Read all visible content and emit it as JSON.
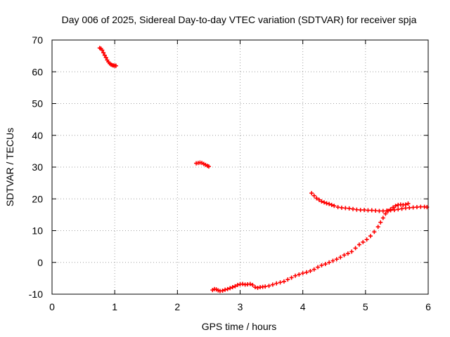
{
  "chart_data": {
    "type": "scatter",
    "title": "Day 006 of 2025, Sidereal Day-to-day VTEC variation (SDTVAR) for receiver spja",
    "xlabel": "GPS time / hours",
    "ylabel": "SDTVAR / TECUs",
    "xlim": [
      0,
      6
    ],
    "ylim": [
      -10,
      70
    ],
    "grid": true,
    "x_ticks": [
      "0",
      "1",
      "2",
      "3",
      "4",
      "5",
      "6"
    ],
    "y_ticks": [
      "-10",
      "0",
      "10",
      "20",
      "30",
      "40",
      "50",
      "60",
      "70"
    ],
    "marker": "+",
    "colors": {
      "series": "#ff0000",
      "grid": "#a0a0a0",
      "axes": "#000000"
    },
    "series": [
      {
        "points": [
          [
            0.76,
            67.5
          ],
          [
            0.78,
            67.3
          ],
          [
            0.8,
            66.8
          ],
          [
            0.82,
            66.0
          ],
          [
            0.84,
            65.2
          ],
          [
            0.86,
            64.5
          ],
          [
            0.88,
            63.7
          ],
          [
            0.9,
            63.1
          ],
          [
            0.92,
            62.6
          ],
          [
            0.94,
            62.3
          ],
          [
            0.96,
            62.1
          ],
          [
            0.98,
            62.0
          ],
          [
            1.0,
            61.9
          ],
          [
            1.02,
            61.9
          ],
          [
            2.3,
            31.2
          ],
          [
            2.33,
            31.3
          ],
          [
            2.36,
            31.4
          ],
          [
            2.39,
            31.3
          ],
          [
            2.42,
            31.0
          ],
          [
            2.45,
            30.7
          ],
          [
            2.48,
            30.4
          ],
          [
            2.5,
            30.2
          ],
          [
            2.56,
            -8.7
          ],
          [
            2.59,
            -8.4
          ],
          [
            2.62,
            -8.5
          ],
          [
            2.65,
            -8.8
          ],
          [
            2.68,
            -9.0
          ],
          [
            2.72,
            -8.9
          ],
          [
            2.76,
            -8.6
          ],
          [
            2.8,
            -8.4
          ],
          [
            2.84,
            -8.1
          ],
          [
            2.88,
            -7.8
          ],
          [
            2.92,
            -7.5
          ],
          [
            2.96,
            -7.1
          ],
          [
            3.0,
            -6.9
          ],
          [
            3.04,
            -6.8
          ],
          [
            3.08,
            -7.0
          ],
          [
            3.12,
            -6.9
          ],
          [
            3.16,
            -6.8
          ],
          [
            3.2,
            -7.1
          ],
          [
            3.24,
            -7.8
          ],
          [
            3.28,
            -8.0
          ],
          [
            3.32,
            -7.8
          ],
          [
            3.36,
            -7.7
          ],
          [
            3.4,
            -7.6
          ],
          [
            3.46,
            -7.4
          ],
          [
            3.52,
            -7.0
          ],
          [
            3.58,
            -6.6
          ],
          [
            3.64,
            -6.3
          ],
          [
            3.7,
            -6.0
          ],
          [
            3.76,
            -5.4
          ],
          [
            3.82,
            -4.8
          ],
          [
            3.88,
            -4.2
          ],
          [
            3.94,
            -3.8
          ],
          [
            4.0,
            -3.4
          ],
          [
            4.06,
            -3.1
          ],
          [
            4.12,
            -2.7
          ],
          [
            4.18,
            -2.2
          ],
          [
            4.24,
            -1.5
          ],
          [
            4.3,
            -0.9
          ],
          [
            4.36,
            -0.5
          ],
          [
            4.42,
            0.0
          ],
          [
            4.48,
            0.5
          ],
          [
            4.54,
            1.0
          ],
          [
            4.6,
            1.6
          ],
          [
            4.66,
            2.3
          ],
          [
            4.72,
            2.8
          ],
          [
            4.78,
            3.4
          ],
          [
            4.84,
            4.5
          ],
          [
            4.9,
            5.6
          ],
          [
            4.96,
            6.4
          ],
          [
            5.02,
            7.2
          ],
          [
            5.08,
            8.3
          ],
          [
            5.14,
            9.6
          ],
          [
            5.2,
            11.2
          ],
          [
            5.24,
            12.6
          ],
          [
            5.28,
            14.0
          ],
          [
            5.32,
            15.3
          ],
          [
            5.36,
            16.2
          ],
          [
            5.4,
            16.7
          ],
          [
            5.44,
            17.3
          ],
          [
            5.48,
            17.8
          ],
          [
            5.52,
            18.1
          ],
          [
            5.56,
            18.2
          ],
          [
            5.6,
            18.1
          ],
          [
            5.64,
            18.2
          ],
          [
            5.68,
            18.5
          ],
          [
            4.14,
            21.8
          ],
          [
            4.18,
            21.0
          ],
          [
            4.22,
            20.2
          ],
          [
            4.26,
            19.7
          ],
          [
            4.3,
            19.2
          ],
          [
            4.34,
            18.9
          ],
          [
            4.38,
            18.6
          ],
          [
            4.42,
            18.4
          ],
          [
            4.46,
            18.1
          ],
          [
            4.5,
            17.8
          ],
          [
            4.56,
            17.4
          ],
          [
            4.62,
            17.2
          ],
          [
            4.68,
            17.1
          ],
          [
            4.74,
            17.0
          ],
          [
            4.8,
            16.8
          ],
          [
            4.86,
            16.6
          ],
          [
            4.92,
            16.5
          ],
          [
            4.98,
            16.5
          ],
          [
            5.04,
            16.4
          ],
          [
            5.1,
            16.4
          ],
          [
            5.16,
            16.3
          ],
          [
            5.22,
            16.2
          ],
          [
            5.28,
            16.2
          ],
          [
            5.34,
            16.3
          ],
          [
            5.4,
            16.4
          ],
          [
            5.46,
            16.5
          ],
          [
            5.52,
            16.7
          ],
          [
            5.58,
            16.9
          ],
          [
            5.64,
            17.1
          ],
          [
            5.7,
            17.2
          ],
          [
            5.76,
            17.3
          ],
          [
            5.82,
            17.4
          ],
          [
            5.88,
            17.5
          ],
          [
            5.94,
            17.5
          ],
          [
            5.98,
            17.4
          ]
        ]
      }
    ]
  }
}
